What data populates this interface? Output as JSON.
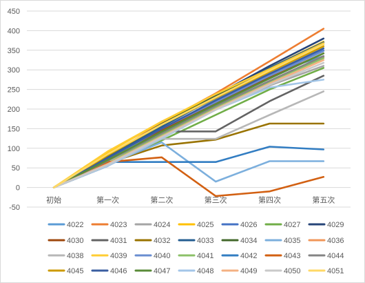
{
  "chart_data": {
    "type": "line",
    "categories": [
      "初始",
      "第一次",
      "第二次",
      "第三次",
      "第四次",
      "第五次"
    ],
    "ylim": [
      -50,
      450
    ],
    "y_ticks": [
      "-50",
      "0",
      "50",
      "100",
      "150",
      "200",
      "250",
      "300",
      "350",
      "400",
      "450"
    ],
    "grid": "horizontal",
    "legend_position": "bottom",
    "series": [
      {
        "name": "4022",
        "color": "#5b9bd5",
        "values": [
          0,
          55,
          145,
          225,
          290,
          335
        ]
      },
      {
        "name": "4023",
        "color": "#ed7d31",
        "values": [
          0,
          80,
          165,
          240,
          322,
          405
        ]
      },
      {
        "name": "4024",
        "color": "#a5a5a5",
        "values": [
          0,
          60,
          140,
          200,
          260,
          310
        ]
      },
      {
        "name": "4025",
        "color": "#ffc000",
        "values": [
          0,
          90,
          168,
          235,
          305,
          372
        ]
      },
      {
        "name": "4026",
        "color": "#4472c4",
        "values": [
          0,
          68,
          145,
          215,
          285,
          350
        ]
      },
      {
        "name": "4027",
        "color": "#70ad47",
        "values": [
          0,
          60,
          120,
          185,
          250,
          305
        ]
      },
      {
        "name": "4029",
        "color": "#264478",
        "values": [
          0,
          78,
          155,
          235,
          310,
          380
        ]
      },
      {
        "name": "4030",
        "color": "#9e480e",
        "values": [
          0,
          70,
          145,
          215,
          280,
          342
        ]
      },
      {
        "name": "4031",
        "color": "#636363",
        "values": [
          0,
          55,
          143,
          143,
          220,
          285
        ]
      },
      {
        "name": "4032",
        "color": "#997300",
        "values": [
          0,
          62,
          107,
          122,
          163,
          163
        ]
      },
      {
        "name": "4033",
        "color": "#255e91",
        "values": [
          0,
          78,
          155,
          230,
          305,
          370
        ]
      },
      {
        "name": "4034",
        "color": "#43682b",
        "values": [
          0,
          82,
          162,
          232,
          302,
          365
        ]
      },
      {
        "name": "4035",
        "color": "#7cafdd",
        "values": [
          0,
          60,
          115,
          15,
          67,
          67
        ]
      },
      {
        "name": "4036",
        "color": "#f1975a",
        "values": [
          0,
          62,
          132,
          205,
          270,
          332
        ]
      },
      {
        "name": "4038",
        "color": "#b7b7b7",
        "values": [
          0,
          55,
          124,
          124,
          185,
          245
        ]
      },
      {
        "name": "4039",
        "color": "#ffcd33",
        "values": [
          0,
          92,
          168,
          238,
          302,
          368
        ]
      },
      {
        "name": "4040",
        "color": "#698ed0",
        "values": [
          0,
          72,
          150,
          218,
          285,
          348
        ]
      },
      {
        "name": "4041",
        "color": "#8cc168",
        "values": [
          0,
          62,
          135,
          205,
          270,
          330
        ]
      },
      {
        "name": "4042",
        "color": "#327dc2",
        "values": [
          0,
          65,
          65,
          65,
          104,
          97
        ]
      },
      {
        "name": "4043",
        "color": "#d26012",
        "values": [
          0,
          65,
          77,
          -22,
          -10,
          27
        ]
      },
      {
        "name": "4044",
        "color": "#848484",
        "values": [
          0,
          68,
          138,
          208,
          272,
          335
        ]
      },
      {
        "name": "4045",
        "color": "#cc9a00",
        "values": [
          0,
          82,
          160,
          228,
          295,
          360
        ]
      },
      {
        "name": "4046",
        "color": "#3a5da0",
        "values": [
          0,
          75,
          150,
          222,
          290,
          355
        ]
      },
      {
        "name": "4047",
        "color": "#5a8b38",
        "values": [
          0,
          70,
          142,
          212,
          278,
          342
        ]
      },
      {
        "name": "4048",
        "color": "#a3c6e8",
        "values": [
          0,
          55,
          125,
          198,
          255,
          275
        ]
      },
      {
        "name": "4049",
        "color": "#f4b183",
        "values": [
          0,
          60,
          130,
          200,
          265,
          325
        ]
      },
      {
        "name": "4050",
        "color": "#c9c9c9",
        "values": [
          0,
          58,
          128,
          198,
          262,
          318
        ]
      },
      {
        "name": "4051",
        "color": "#ffd966",
        "values": [
          0,
          85,
          160,
          230,
          298,
          365
        ]
      }
    ]
  }
}
